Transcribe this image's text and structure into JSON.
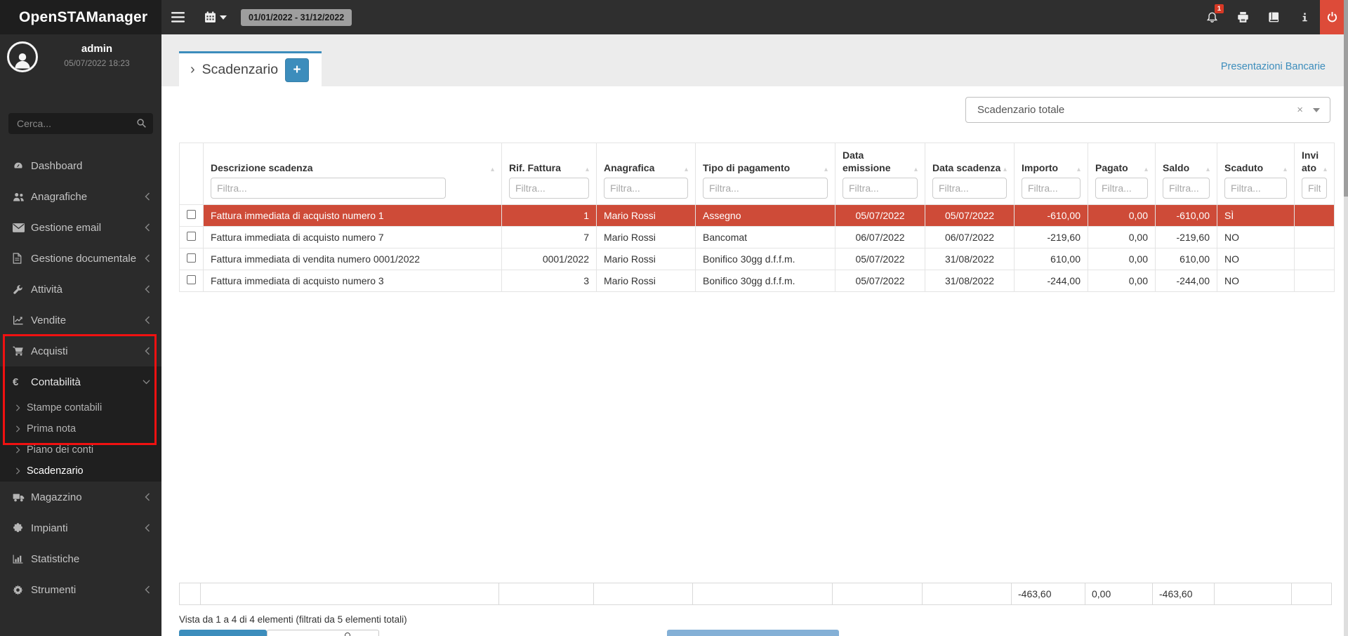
{
  "topbar": {
    "brand": "OpenSTAManager",
    "date_range": "01/01/2022 - 31/12/2022",
    "notifications": "1",
    "icons": [
      "menu-icon",
      "calendar-icon",
      "bell-icon",
      "printer-icon",
      "book-icon",
      "info-icon",
      "power-icon"
    ]
  },
  "sidebar": {
    "user": {
      "name": "admin",
      "datetime": "05/07/2022 18:23"
    },
    "search": {
      "placeholder": "Cerca..."
    },
    "items": [
      {
        "label": "Dashboard",
        "icon": "dashboard"
      },
      {
        "label": "Anagrafiche",
        "icon": "users",
        "collapsible": true
      },
      {
        "label": "Gestione email",
        "icon": "envelope",
        "collapsible": true
      },
      {
        "label": "Gestione documentale",
        "icon": "file",
        "collapsible": true
      },
      {
        "label": "Attività",
        "icon": "wrench",
        "collapsible": true
      },
      {
        "label": "Vendite",
        "icon": "chart-line",
        "collapsible": true
      },
      {
        "label": "Acquisti",
        "icon": "cart",
        "collapsible": true
      },
      {
        "label": "Contabilità",
        "icon": "euro",
        "expanded": true,
        "children": [
          {
            "label": "Stampe contabili"
          },
          {
            "label": "Prima nota"
          },
          {
            "label": "Piano dei conti"
          },
          {
            "label": "Scadenzario",
            "active": true
          }
        ]
      },
      {
        "label": "Magazzino",
        "icon": "truck",
        "collapsible": true
      },
      {
        "label": "Impianti",
        "icon": "puzzle",
        "collapsible": true
      },
      {
        "label": "Statistiche",
        "icon": "bar-chart"
      },
      {
        "label": "Strumenti",
        "icon": "gear",
        "collapsible": true
      }
    ]
  },
  "main": {
    "tab": {
      "breadcrumb_caret": "›",
      "label": "Scadenzario",
      "add_button": "+"
    },
    "top_link": "Presentazioni Bancarie",
    "filter_select": {
      "value": "Scadenzario totale",
      "clear": "×"
    },
    "table": {
      "filter_placeholder": "Filtra...",
      "columns": [
        "Descrizione scadenza",
        "Rif. Fattura",
        "Anagrafica",
        "Tipo di pagamento",
        "Data emissione",
        "Data scadenza",
        "Importo",
        "Pagato",
        "Saldo",
        "Scaduto",
        "Inviato"
      ],
      "rows": [
        {
          "danger": true,
          "cells": [
            "Fattura immediata di acquisto numero 1",
            "1",
            "Mario Rossi",
            "Assegno",
            "05/07/2022",
            "05/07/2022",
            "-610,00",
            "0,00",
            "-610,00",
            "SÌ",
            ""
          ]
        },
        {
          "cells": [
            "Fattura immediata di acquisto numero 7",
            "7",
            "Mario Rossi",
            "Bancomat",
            "06/07/2022",
            "06/07/2022",
            "-219,60",
            "0,00",
            "-219,60",
            "NO",
            ""
          ]
        },
        {
          "cells": [
            "Fattura immediata di vendita numero 0001/2022",
            "0001/2022",
            "Mario Rossi",
            "Bonifico 30gg d.f.f.m.",
            "05/07/2022",
            "31/08/2022",
            "610,00",
            "0,00",
            "610,00",
            "NO",
            ""
          ]
        },
        {
          "cells": [
            "Fattura immediata di acquisto numero 3",
            "3",
            "Mario Rossi",
            "Bonifico 30gg d.f.f.m.",
            "05/07/2022",
            "31/08/2022",
            "-244,00",
            "0,00",
            "-244,00",
            "NO",
            ""
          ]
        }
      ],
      "totals": [
        "",
        "",
        "",
        "",
        "",
        "",
        "-463,60",
        "0,00",
        "-463,60",
        "",
        ""
      ],
      "info": "Vista da 1 a 4 di 4 elementi (filtrati da 5 elementi totali)"
    }
  },
  "colors": {
    "accent": "#3c8dbc",
    "danger_row": "#ce4b38",
    "power_button": "#dd4b39",
    "annotation_border": "#f01111",
    "topbar_bg": "#2f2f2f",
    "sidebar_bg": "#2b2b2b"
  }
}
